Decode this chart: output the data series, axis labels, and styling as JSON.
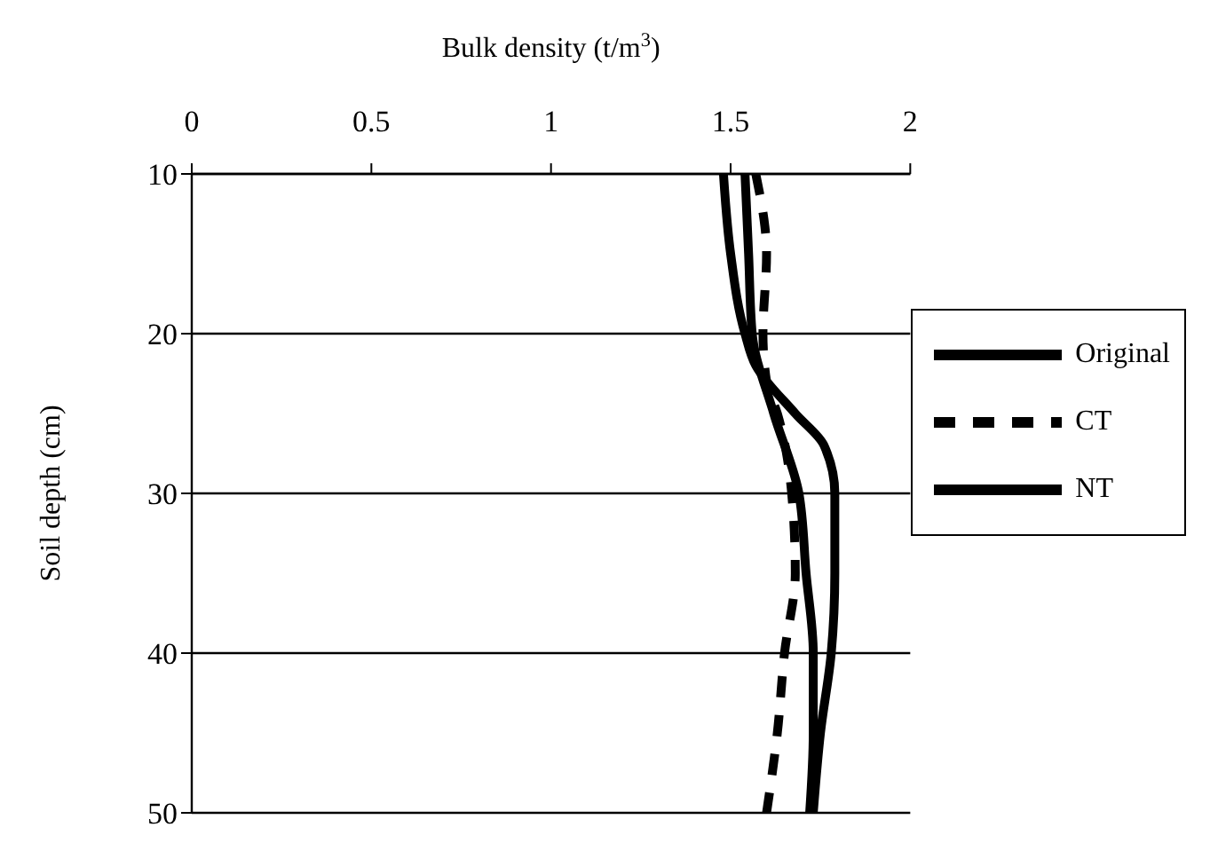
{
  "chart_data": {
    "type": "line",
    "orientation": "horizontal",
    "xlabel": "Bulk density (t/m$^{3}$)",
    "ylabel": "Soil depth (cm)",
    "xlim": [
      0,
      2
    ],
    "xticks": [
      0,
      0.5,
      1,
      1.5,
      2
    ],
    "ylim": [
      50,
      10
    ],
    "yticks": [
      10,
      20,
      30,
      40,
      50
    ],
    "grid": "y",
    "legend": "right",
    "series": [
      {
        "name": "Original",
        "color": "#000000",
        "line_style": "solid",
        "x": [
          10,
          15,
          20,
          22,
          25,
          27,
          30,
          35,
          40,
          45,
          50
        ],
        "values": [
          1.48,
          1.5,
          1.54,
          1.57,
          1.68,
          1.76,
          1.79,
          1.79,
          1.78,
          1.75,
          1.73
        ]
      },
      {
        "name": "CT",
        "color": "#000000",
        "line_style": "dashed",
        "x": [
          10,
          15,
          20,
          23,
          25,
          30,
          35,
          40,
          45,
          50
        ],
        "values": [
          1.57,
          1.6,
          1.59,
          1.6,
          1.63,
          1.67,
          1.68,
          1.65,
          1.63,
          1.6
        ]
      },
      {
        "name": "NT",
        "color": "#000000",
        "line_style": "solid",
        "x": [
          10,
          15,
          20,
          25,
          30,
          35,
          40,
          45,
          50
        ],
        "values": [
          1.54,
          1.55,
          1.56,
          1.62,
          1.69,
          1.71,
          1.73,
          1.73,
          1.72
        ]
      }
    ]
  }
}
